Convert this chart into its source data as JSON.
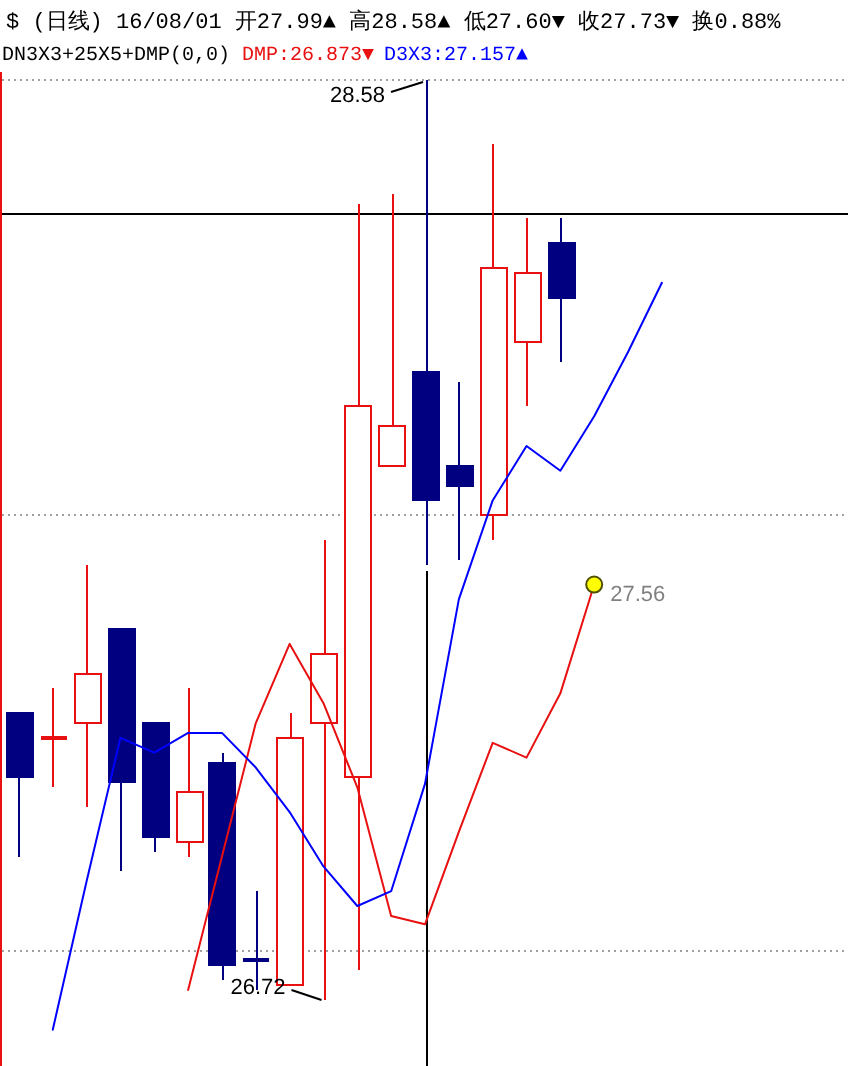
{
  "chart_data": {
    "type": "candlestick",
    "title": "$ (日线) 16/08/01 开27.99▲ 高28.58▲ 低27.60▼ 收27.73▼ 换0.88%",
    "subtitle": "DN3X3+25X5+DMP(0,0)",
    "categories": [
      null,
      null,
      null,
      null,
      null,
      null,
      null,
      null,
      null,
      null,
      null,
      null,
      null,
      null,
      null,
      null,
      null,
      null,
      null,
      null,
      null,
      null,
      null,
      null,
      null
    ],
    "ohlc": [
      [
        27.3,
        27.3,
        27.01,
        27.17
      ],
      [
        27.25,
        27.35,
        27.15,
        27.25
      ],
      [
        27.28,
        27.6,
        27.11,
        27.38
      ],
      [
        27.47,
        27.47,
        26.98,
        27.16
      ],
      [
        27.28,
        27.28,
        27.02,
        27.05
      ],
      [
        27.04,
        27.35,
        27.01,
        27.14
      ],
      [
        27.2,
        27.22,
        26.76,
        26.79
      ],
      [
        26.8,
        26.94,
        26.74,
        26.8
      ],
      [
        26.75,
        27.3,
        26.75,
        27.25
      ],
      [
        27.28,
        27.65,
        26.72,
        27.42
      ],
      [
        27.17,
        28.33,
        26.78,
        27.92
      ],
      [
        27.8,
        28.35,
        27.8,
        27.88
      ],
      [
        27.99,
        28.58,
        27.6,
        27.73
      ],
      [
        27.8,
        27.97,
        27.61,
        27.76
      ],
      [
        27.7,
        28.45,
        27.65,
        28.2
      ],
      [
        28.05,
        28.3,
        27.92,
        28.19
      ],
      [
        28.25,
        28.3,
        28.01,
        28.14
      ],
      null,
      null,
      null,
      null,
      null,
      null,
      null,
      null
    ],
    "colors": [
      "#000080",
      "#e81010",
      "#e81010",
      "#000080",
      "#000080",
      "#e81010",
      "#000080",
      "#000080",
      "#e81010",
      "#e81010",
      "#e81010",
      "#e81010",
      "#000080",
      "#000080",
      "#e81010",
      "#e81010",
      "#000080",
      null,
      null,
      null,
      null,
      null,
      null,
      null,
      null
    ],
    "series": [
      {
        "name": "DMP:26.873▼",
        "type": "line",
        "color": "#e81010",
        "values": [
          null,
          null,
          null,
          null,
          null,
          26.74,
          27.01,
          27.28,
          27.44,
          27.32,
          27.15,
          26.89,
          26.873,
          27.06,
          27.24,
          27.21,
          27.34,
          27.56,
          null,
          null,
          null,
          null,
          null,
          null,
          null
        ]
      },
      {
        "name": "D3X3:27.157▲",
        "type": "line",
        "color": "#0000ff",
        "values": [
          null,
          26.66,
          26.96,
          27.25,
          27.22,
          27.26,
          27.26,
          27.19,
          27.1,
          26.99,
          26.91,
          26.94,
          27.157,
          27.53,
          27.73,
          27.84,
          27.79,
          27.9,
          28.03,
          28.17,
          null,
          null,
          null,
          null,
          null
        ]
      },
      {
        "type": "scatter",
        "color": "#ffff00",
        "marker": "circle",
        "values": [
          null,
          null,
          null,
          null,
          null,
          null,
          null,
          null,
          null,
          null,
          null,
          null,
          null,
          null,
          null,
          null,
          null,
          27.56,
          null,
          null,
          null,
          null,
          null,
          null,
          null
        ],
        "value_labels": [
          null,
          null,
          null,
          null,
          null,
          null,
          null,
          null,
          null,
          null,
          null,
          null,
          null,
          null,
          null,
          null,
          null,
          "27.56",
          null,
          null,
          null,
          null,
          null,
          null,
          null
        ]
      }
    ],
    "annotations": [
      "28.58",
      "26.72"
    ],
    "ref_lines": [
      {
        "axis": "y",
        "value": 28.31,
        "color": "#000000"
      },
      {
        "axis": "y",
        "value": 28.58,
        "color": "#a0a0a0",
        "line_style": "dotted"
      },
      {
        "axis": "y",
        "value": 27.7,
        "color": "#a0a0a0",
        "line_style": "dotted"
      },
      {
        "axis": "y",
        "value": 26.82,
        "color": "#a0a0a0",
        "line_style": "dotted"
      }
    ],
    "legend": "top left"
  }
}
